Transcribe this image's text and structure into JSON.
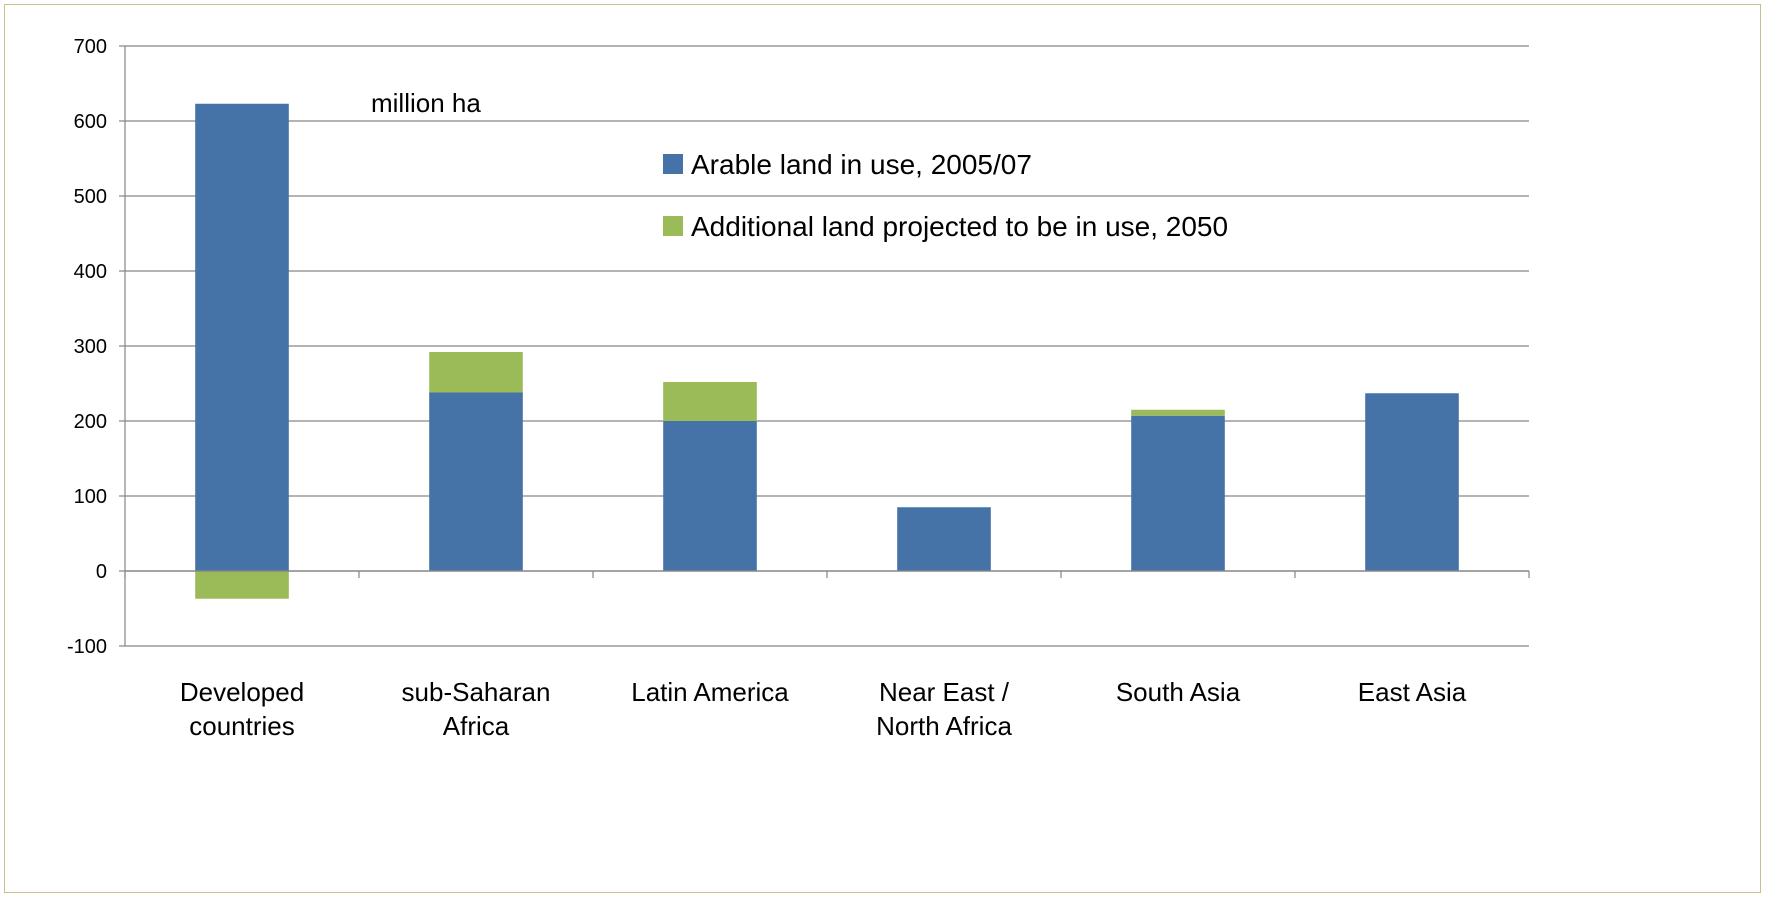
{
  "chart_data": {
    "type": "bar",
    "stacked": true,
    "unit_label": "million ha",
    "categories": [
      [
        "Developed",
        "countries"
      ],
      [
        "sub-Saharan",
        "Africa"
      ],
      [
        "Latin America"
      ],
      [
        "Near East /",
        "North Africa"
      ],
      [
        "South Asia"
      ],
      [
        "East Asia"
      ]
    ],
    "series": [
      {
        "name": "Arable land in use, 2005/07",
        "color": "#4572a7",
        "values": [
          623,
          238,
          200,
          85,
          207,
          237
        ]
      },
      {
        "name": "Additional land projected to be in use, 2050",
        "color": "#9bbb59",
        "values": [
          -37,
          54,
          52,
          0,
          8,
          0
        ]
      }
    ],
    "ylim": [
      -100,
      700
    ],
    "yticks": [
      -100,
      0,
      100,
      200,
      300,
      400,
      500,
      600,
      700
    ],
    "grid": true,
    "legend_position": "top-center"
  }
}
